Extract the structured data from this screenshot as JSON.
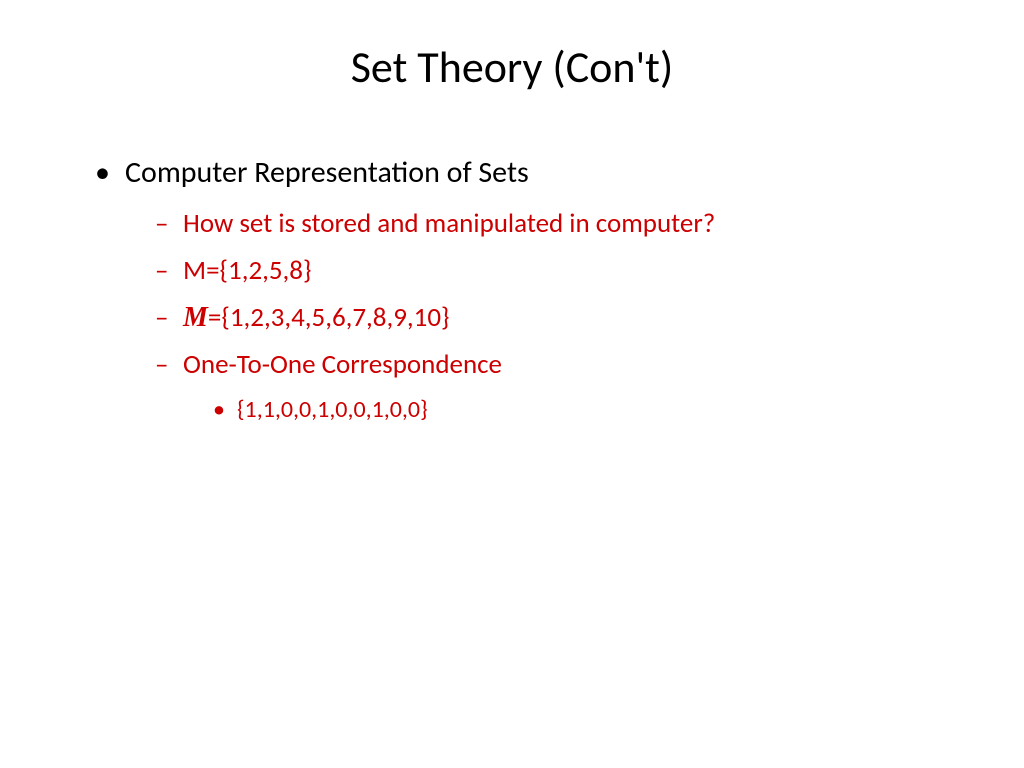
{
  "title": "Set Theory (Con't)",
  "bullets": {
    "main": "Computer Representation of Sets",
    "sub": [
      "How set is stored and manipulated in computer?",
      "M={1,2,5,8}",
      "={1,2,3,4,5,6,7,8,9,10}",
      "One-To-One Correspondence"
    ],
    "script_m": "M",
    "subsub": "{1,1,0,0,1,0,0,1,0,0}"
  },
  "colors": {
    "background": "#ffffff",
    "title_color": "#000000",
    "level1_color": "#000000",
    "sub_color": "#cc0000"
  },
  "typography": {
    "title_fontsize": 44,
    "level1_fontsize": 30,
    "level2_fontsize": 27,
    "level3_fontsize": 24,
    "font_family": "Calibri"
  }
}
